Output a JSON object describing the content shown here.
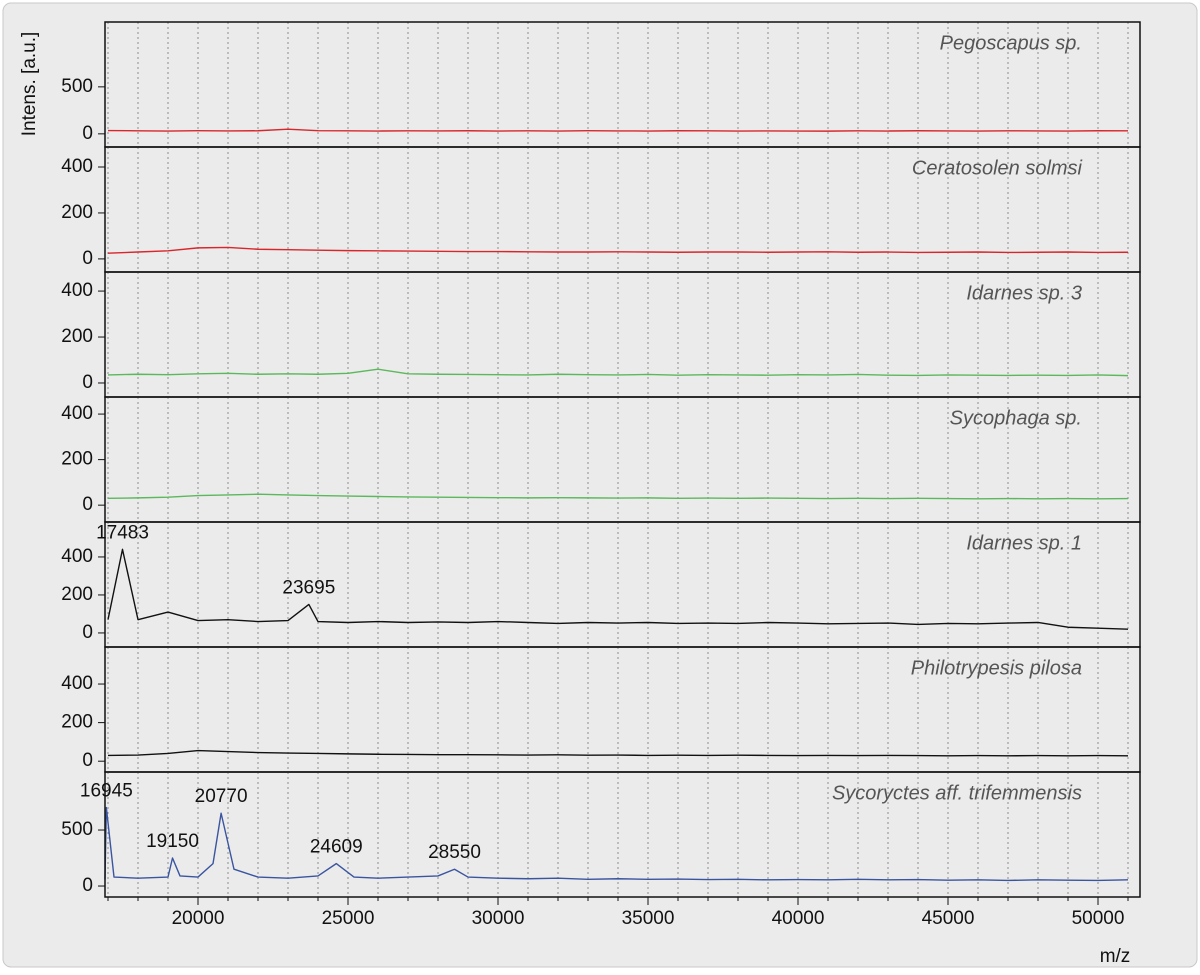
{
  "chart_data": [
    {
      "type": "line",
      "title": "Pegoscapus sp.",
      "color": "#d9262b",
      "ylabel": "Intens. [a.u.]",
      "ylim": [
        -140,
        1190
      ],
      "yticks": [
        0,
        500
      ],
      "x": [
        17000,
        18000,
        19000,
        20000,
        21000,
        22000,
        23000,
        24000,
        25000,
        26000,
        27000,
        28000,
        29000,
        30000,
        31000,
        32000,
        33000,
        34000,
        35000,
        36000,
        37000,
        38000,
        39000,
        40000,
        41000,
        42000,
        43000,
        44000,
        45000,
        46000,
        47000,
        48000,
        49000,
        50000,
        51000
      ],
      "values": [
        35,
        32,
        30,
        34,
        31,
        33,
        50,
        34,
        32,
        30,
        32,
        31,
        33,
        30,
        32,
        30,
        34,
        31,
        30,
        33,
        32,
        30,
        31,
        30,
        29,
        32,
        30,
        33,
        31,
        30,
        32,
        31,
        30,
        33,
        32
      ]
    },
    {
      "type": "line",
      "title": "Ceratosolen solmsi",
      "color": "#d9262b",
      "ylim": [
        -57,
        487
      ],
      "yticks": [
        0,
        200,
        400
      ],
      "x": [
        17000,
        18000,
        19000,
        20000,
        21000,
        22000,
        23000,
        24000,
        25000,
        26000,
        27000,
        28000,
        29000,
        30000,
        31000,
        32000,
        33000,
        34000,
        35000,
        36000,
        37000,
        38000,
        39000,
        40000,
        41000,
        42000,
        43000,
        44000,
        45000,
        46000,
        47000,
        48000,
        49000,
        50000,
        51000
      ],
      "values": [
        25,
        30,
        35,
        48,
        50,
        42,
        40,
        38,
        36,
        35,
        34,
        33,
        32,
        32,
        31,
        30,
        30,
        31,
        30,
        29,
        30,
        30,
        29,
        30,
        31,
        29,
        30,
        28,
        29,
        30,
        28,
        29,
        30,
        28,
        29
      ]
    },
    {
      "type": "line",
      "title": "Idarnes sp. 3",
      "color": "#5cb85c",
      "ylim": [
        -61,
        483
      ],
      "yticks": [
        0,
        200,
        400
      ],
      "x": [
        17000,
        18000,
        19000,
        20000,
        21000,
        22000,
        23000,
        24000,
        25000,
        26000,
        27000,
        28000,
        29000,
        30000,
        31000,
        32000,
        33000,
        34000,
        35000,
        36000,
        37000,
        38000,
        39000,
        40000,
        41000,
        42000,
        43000,
        44000,
        45000,
        46000,
        47000,
        48000,
        49000,
        50000,
        51000
      ],
      "values": [
        35,
        38,
        36,
        40,
        42,
        38,
        40,
        38,
        42,
        60,
        40,
        38,
        37,
        36,
        35,
        38,
        36,
        35,
        37,
        34,
        36,
        35,
        34,
        36,
        35,
        37,
        34,
        33,
        35,
        34,
        33,
        34,
        33,
        35,
        32
      ]
    },
    {
      "type": "line",
      "title": "Sycophaga sp.",
      "color": "#5cb85c",
      "ylim": [
        -74,
        475
      ],
      "yticks": [
        0,
        200,
        400
      ],
      "x": [
        17000,
        18000,
        19000,
        20000,
        21000,
        22000,
        23000,
        24000,
        25000,
        26000,
        27000,
        28000,
        29000,
        30000,
        31000,
        32000,
        33000,
        34000,
        35000,
        36000,
        37000,
        38000,
        39000,
        40000,
        41000,
        42000,
        43000,
        44000,
        45000,
        46000,
        47000,
        48000,
        49000,
        50000,
        51000
      ],
      "values": [
        30,
        32,
        35,
        42,
        45,
        48,
        45,
        42,
        40,
        38,
        36,
        35,
        34,
        33,
        32,
        33,
        32,
        31,
        32,
        30,
        31,
        30,
        31,
        30,
        29,
        30,
        29,
        30,
        29,
        28,
        29,
        28,
        29,
        28,
        29
      ]
    },
    {
      "type": "line",
      "title": "Idarnes sp. 1",
      "color": "#111111",
      "ylim": [
        -74,
        584
      ],
      "yticks": [
        0,
        200,
        400
      ],
      "peaks": [
        17483,
        23695
      ],
      "x": [
        17000,
        17483,
        18000,
        19000,
        20000,
        21000,
        22000,
        23000,
        23695,
        24000,
        25000,
        26000,
        27000,
        28000,
        29000,
        30000,
        31000,
        32000,
        33000,
        34000,
        35000,
        36000,
        37000,
        38000,
        39000,
        40000,
        41000,
        42000,
        43000,
        44000,
        45000,
        46000,
        47000,
        48000,
        49000,
        50000,
        51000
      ],
      "values": [
        70,
        440,
        70,
        110,
        65,
        70,
        60,
        65,
        150,
        60,
        55,
        60,
        55,
        58,
        55,
        60,
        55,
        50,
        55,
        52,
        55,
        50,
        52,
        50,
        55,
        52,
        48,
        50,
        52,
        45,
        50,
        48,
        52,
        55,
        30,
        25,
        20
      ]
    },
    {
      "type": "line",
      "title": "Philotrypesis pilosa",
      "color": "#111111",
      "ylim": [
        -56,
        592
      ],
      "yticks": [
        0,
        200,
        400
      ],
      "x": [
        17000,
        18000,
        19000,
        20000,
        21000,
        22000,
        23000,
        24000,
        25000,
        26000,
        27000,
        28000,
        29000,
        30000,
        31000,
        32000,
        33000,
        34000,
        35000,
        36000,
        37000,
        38000,
        39000,
        40000,
        41000,
        42000,
        43000,
        44000,
        45000,
        46000,
        47000,
        48000,
        49000,
        50000,
        51000
      ],
      "values": [
        30,
        32,
        40,
        55,
        50,
        45,
        42,
        40,
        38,
        36,
        35,
        34,
        34,
        33,
        32,
        33,
        31,
        32,
        30,
        31,
        30,
        31,
        30,
        29,
        30,
        29,
        30,
        29,
        28,
        29,
        28,
        29,
        28,
        29,
        28
      ]
    },
    {
      "type": "line",
      "title": "Sycoryctes aff. trifemmensis",
      "color": "#3a55a0",
      "ylim": [
        -98,
        1018
      ],
      "yticks": [
        0,
        500
      ],
      "peaks": [
        16945,
        19150,
        20770,
        24609,
        28550
      ],
      "xlim": [
        16900,
        51400
      ],
      "xticks": [
        20000,
        25000,
        30000,
        35000,
        40000,
        45000,
        50000
      ],
      "xminor_ticks": [
        17000,
        18000,
        19000,
        20000,
        21000,
        22000,
        23000,
        24000,
        25000,
        26000,
        27000,
        28000,
        29000,
        30000,
        31000,
        32000,
        33000,
        34000,
        35000,
        36000,
        37000,
        38000,
        39000,
        40000,
        41000,
        42000,
        43000,
        44000,
        45000,
        46000,
        47000,
        48000,
        49000,
        50000,
        51000
      ],
      "xlabel": "m/z",
      "x": [
        16900,
        16945,
        17200,
        18000,
        19000,
        19150,
        19400,
        20000,
        20500,
        20770,
        21200,
        22000,
        23000,
        24000,
        24609,
        25200,
        26000,
        27000,
        28000,
        28550,
        29000,
        30000,
        31000,
        32000,
        33000,
        34000,
        35000,
        36000,
        37000,
        38000,
        39000,
        40000,
        41000,
        42000,
        43000,
        44000,
        45000,
        46000,
        47000,
        48000,
        49000,
        50000,
        51000
      ],
      "values": [
        60,
        700,
        80,
        70,
        80,
        250,
        90,
        80,
        200,
        650,
        150,
        80,
        70,
        90,
        200,
        80,
        70,
        80,
        90,
        150,
        80,
        70,
        65,
        70,
        60,
        65,
        60,
        62,
        58,
        60,
        55,
        58,
        55,
        60,
        55,
        58,
        52,
        55,
        50,
        55,
        52,
        50,
        55
      ]
    }
  ]
}
